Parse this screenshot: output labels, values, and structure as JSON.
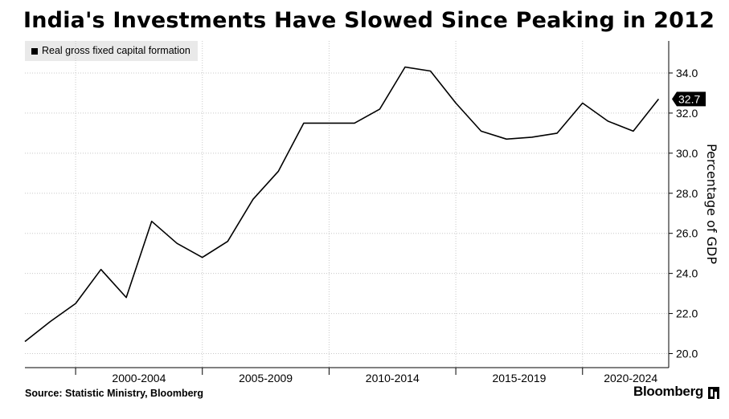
{
  "header": {
    "title": "India's Investments Have Slowed Since Peaking in 2012"
  },
  "footer": {
    "source": "Source: Statistic Ministry, Bloomberg",
    "brand": "Bloomberg"
  },
  "chart_data": {
    "type": "line",
    "title": "India's Investments Have Slowed Since Peaking in 2012",
    "ylabel": "Percentage of GDP",
    "xlabel": "",
    "x_tick_labels": [
      "2000-2004",
      "2005-2009",
      "2010-2014",
      "2015-2019",
      "2020-2024"
    ],
    "y_tick_labels": [
      "20.0",
      "22.0",
      "24.0",
      "26.0",
      "28.0",
      "30.0",
      "32.0",
      "34.0"
    ],
    "ylim": [
      19.3,
      35.6
    ],
    "xlim": [
      1996.0,
      2021.4
    ],
    "grid": true,
    "legend_position": "top-left",
    "line_color": "#000000",
    "last_value_label": "32.7",
    "series": [
      {
        "name": "Real gross fixed capital formation",
        "x": [
          1996,
          1997,
          1998,
          1999,
          2000,
          2001,
          2002,
          2003,
          2004,
          2005,
          2006,
          2007,
          2008,
          2009,
          2010,
          2011,
          2012,
          2013,
          2014,
          2015,
          2016,
          2017,
          2018,
          2019,
          2020,
          2021
        ],
        "values": [
          20.6,
          21.6,
          22.5,
          24.2,
          22.8,
          26.6,
          25.5,
          24.8,
          25.6,
          27.7,
          29.1,
          31.5,
          31.5,
          31.5,
          32.2,
          34.3,
          34.1,
          32.5,
          31.1,
          30.7,
          30.8,
          31.0,
          32.5,
          31.6,
          31.1,
          32.7
        ]
      }
    ]
  }
}
